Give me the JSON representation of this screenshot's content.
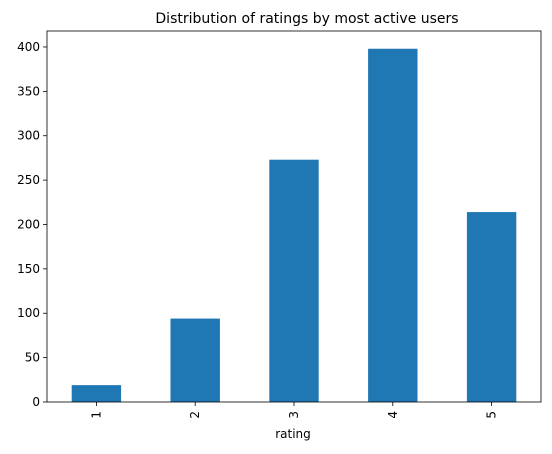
{
  "chart_data": {
    "type": "bar",
    "title": "Distribution of ratings by most active users",
    "xlabel": "rating",
    "ylabel": "",
    "categories": [
      "1",
      "2",
      "3",
      "4",
      "5"
    ],
    "values": [
      19,
      94,
      273,
      398,
      214
    ],
    "ylim": [
      0,
      418
    ],
    "yticks": [
      0,
      50,
      100,
      150,
      200,
      250,
      300,
      350,
      400
    ],
    "grid": false,
    "legend": "none",
    "bar_color": "#1f77b4"
  }
}
